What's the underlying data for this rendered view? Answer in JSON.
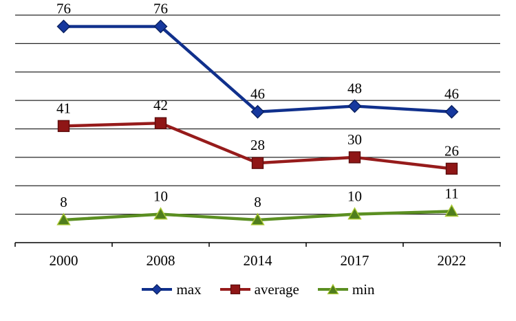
{
  "chart_data": {
    "type": "line",
    "title": "",
    "xlabel": "",
    "ylabel": "",
    "categories": [
      "2000",
      "2008",
      "2014",
      "2017",
      "2022"
    ],
    "series": [
      {
        "name": "max",
        "values": [
          76,
          76,
          46,
          48,
          46
        ],
        "line_color": "#10308c",
        "marker": "diamond",
        "marker_fill": "#16389e",
        "marker_edge": "#081f5e"
      },
      {
        "name": "average",
        "values": [
          41,
          42,
          28,
          30,
          26
        ],
        "line_color": "#961b1b",
        "marker": "square",
        "marker_fill": "#8f1616",
        "marker_edge": "#5c0d0d"
      },
      {
        "name": "min",
        "values": [
          8,
          10,
          8,
          10,
          11
        ],
        "line_color": "#5b8f22",
        "marker": "triangle",
        "marker_fill": "#4f7d1d",
        "marker_edge": "#a9c832"
      }
    ],
    "ylim": [
      0,
      80
    ],
    "ytick_step": 10,
    "grid": true,
    "y_tick_labels_visible": false,
    "data_labels": true,
    "legend_position": "bottom",
    "axis_color": "#000000",
    "grid_color": "#262626",
    "text_color": "#000000"
  }
}
